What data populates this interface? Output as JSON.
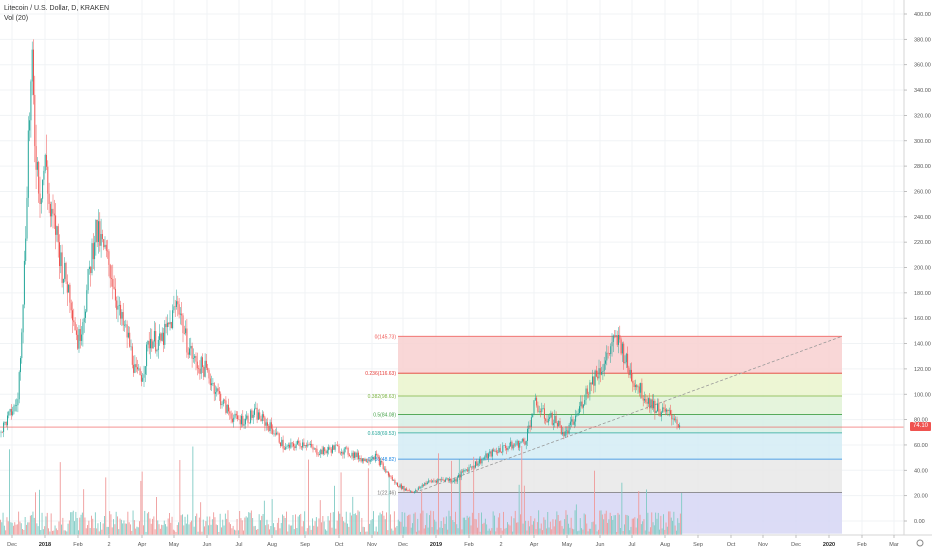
{
  "legend": {
    "symbol": "Litecoin / U.S. Dollar, D, KRAKEN",
    "indicator": "Vol (20)"
  },
  "price_tag": "74.10",
  "colors": {
    "up": "#26a69a",
    "down": "#ef5350",
    "vol_up": "#80cbc4",
    "vol_down": "#ef9a9a",
    "grid": "#f0f3f5",
    "axis_text": "#555555"
  },
  "chart_data": {
    "type": "candlestick",
    "title": "Litecoin / U.S. Dollar, D, KRAKEN",
    "xlabel": "",
    "ylabel": "",
    "ylim": [
      -10,
      420
    ],
    "y_ticks": [
      0,
      20,
      40,
      60,
      80,
      100,
      120,
      140,
      160,
      180,
      200,
      220,
      240,
      260,
      280,
      300,
      320,
      340,
      360,
      380,
      400
    ],
    "x_ticks": [
      "Dec",
      "2018",
      "Feb",
      "2",
      "Apr",
      "May",
      "Jun",
      "Jul",
      "Aug",
      "Sep",
      "Oct",
      "Nov",
      "Dec",
      "2019",
      "Feb",
      "2",
      "Apr",
      "May",
      "Jun",
      "Jul",
      "Aug",
      "Sep",
      "Oct",
      "Nov",
      "Dec",
      "2020",
      "Feb",
      "Mar"
    ],
    "series": [
      {
        "name": "Vol (20)",
        "type": "histogram",
        "values": []
      }
    ],
    "price_path": [
      [
        0,
        70
      ],
      [
        18,
        95
      ],
      [
        25,
        210
      ],
      [
        28,
        300
      ],
      [
        32,
        355
      ],
      [
        35,
        300
      ],
      [
        40,
        260
      ],
      [
        46,
        285
      ],
      [
        50,
        240
      ],
      [
        56,
        230
      ],
      [
        62,
        200
      ],
      [
        70,
        180
      ],
      [
        78,
        140
      ],
      [
        86,
        175
      ],
      [
        95,
        230
      ],
      [
        103,
        215
      ],
      [
        112,
        195
      ],
      [
        120,
        160
      ],
      [
        128,
        145
      ],
      [
        136,
        115
      ],
      [
        142,
        115
      ],
      [
        150,
        145
      ],
      [
        160,
        140
      ],
      [
        170,
        155
      ],
      [
        178,
        175
      ],
      [
        185,
        145
      ],
      [
        195,
        125
      ],
      [
        205,
        120
      ],
      [
        215,
        105
      ],
      [
        225,
        90
      ],
      [
        235,
        80
      ],
      [
        245,
        80
      ],
      [
        255,
        85
      ],
      [
        265,
        78
      ],
      [
        275,
        70
      ],
      [
        285,
        57
      ],
      [
        295,
        60
      ],
      [
        305,
        62
      ],
      [
        315,
        55
      ],
      [
        325,
        55
      ],
      [
        335,
        58
      ],
      [
        345,
        55
      ],
      [
        355,
        52
      ],
      [
        365,
        48
      ],
      [
        375,
        52
      ],
      [
        385,
        40
      ],
      [
        395,
        30
      ],
      [
        405,
        25
      ],
      [
        415,
        23
      ],
      [
        425,
        30
      ],
      [
        435,
        32
      ],
      [
        445,
        33
      ],
      [
        455,
        32
      ],
      [
        465,
        40
      ],
      [
        475,
        45
      ],
      [
        485,
        50
      ],
      [
        495,
        55
      ],
      [
        505,
        58
      ],
      [
        515,
        60
      ],
      [
        525,
        63
      ],
      [
        535,
        93
      ],
      [
        545,
        82
      ],
      [
        555,
        80
      ],
      [
        565,
        68
      ],
      [
        575,
        80
      ],
      [
        585,
        100
      ],
      [
        595,
        115
      ],
      [
        605,
        125
      ],
      [
        612,
        140
      ],
      [
        620,
        142
      ],
      [
        628,
        120
      ],
      [
        635,
        110
      ],
      [
        645,
        98
      ],
      [
        655,
        90
      ],
      [
        665,
        85
      ],
      [
        675,
        82
      ],
      [
        680,
        74
      ]
    ],
    "fibonacci": {
      "levels": [
        {
          "label": "0(145.73)",
          "value": 145.73,
          "color": "#ef5350",
          "fill": "#f8d0d0"
        },
        {
          "label": "0.236(116.63)",
          "value": 116.63,
          "color": "#e53935",
          "fill": "#eaf5cc"
        },
        {
          "label": "0.382(98.63)",
          "value": 98.63,
          "color": "#7cb342",
          "fill": "#e0f2d6"
        },
        {
          "label": "0.5(84.08)",
          "value": 84.08,
          "color": "#43a047",
          "fill": "#d6efe4"
        },
        {
          "label": "0.618(69.53)",
          "value": 69.53,
          "color": "#26a69a",
          "fill": "#d4ecf5"
        },
        {
          "label": "0.786(48.82)",
          "value": 48.82,
          "color": "#1e88e5",
          "fill": "#e8e8e8"
        },
        {
          "label": "1(22.46)",
          "value": 22.46,
          "color": "#757575",
          "fill": "#d6d6f5"
        }
      ],
      "bottom": -10
    },
    "current_price": 74.1
  }
}
